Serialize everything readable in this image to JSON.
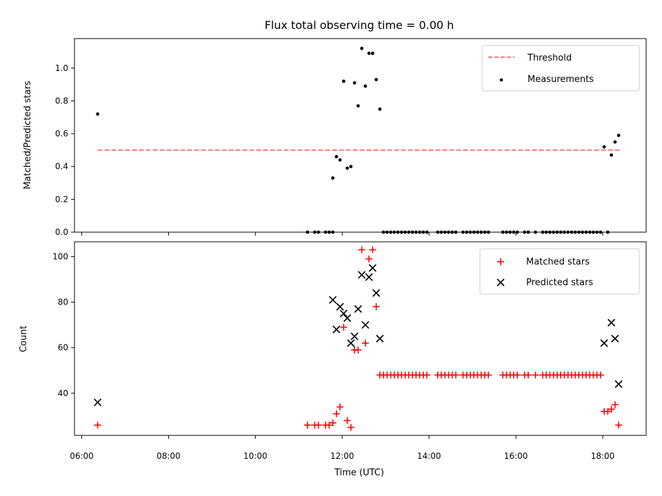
{
  "title": "Flux total observing time = 0.00 h",
  "colors": {
    "threshold": "#ff7777",
    "measurement": "#000000",
    "matched": "#ff0000",
    "predicted": "#000000"
  },
  "chart_data": [
    {
      "type": "scatter",
      "ylabel": "Matched/Predicted stars",
      "xlim": [
        "05:50",
        "19:00"
      ],
      "ylim": [
        0,
        1.18
      ],
      "x_ticks": [
        "06:00",
        "08:00",
        "10:00",
        "12:00",
        "14:00",
        "16:00",
        "18:00"
      ],
      "y_ticks": [
        "0.0",
        "0.2",
        "0.4",
        "0.6",
        "0.8",
        "1.0"
      ],
      "legend_position": "top-right",
      "series": [
        {
          "name": "Threshold",
          "style": "dashed-line",
          "x": [
            "06:22",
            "18:25"
          ],
          "y": [
            0.5,
            0.5
          ]
        },
        {
          "name": "Measurements",
          "style": "dot",
          "points": [
            [
              "06:22",
              0.72
            ],
            [
              "11:47",
              0.33
            ],
            [
              "11:52",
              0.46
            ],
            [
              "11:57",
              0.44
            ],
            [
              "12:02",
              0.92
            ],
            [
              "12:07",
              0.39
            ],
            [
              "12:12",
              0.4
            ],
            [
              "12:17",
              0.91
            ],
            [
              "12:22",
              0.77
            ],
            [
              "12:27",
              1.12
            ],
            [
              "12:32",
              0.89
            ],
            [
              "12:37",
              1.09
            ],
            [
              "12:42",
              1.09
            ],
            [
              "12:47",
              0.93
            ],
            [
              "12:52",
              0.75
            ],
            [
              "18:02",
              0.52
            ],
            [
              "18:12",
              0.47
            ],
            [
              "18:17",
              0.55
            ],
            [
              "18:22",
              0.59
            ],
            [
              "11:12",
              0
            ],
            [
              "11:22",
              0
            ],
            [
              "11:27",
              0
            ],
            [
              "11:37",
              0
            ],
            [
              "11:42",
              0
            ],
            [
              "11:47",
              0
            ],
            [
              "18:07",
              0
            ],
            [
              "12:57",
              0
            ],
            [
              "13:02",
              0
            ],
            [
              "13:07",
              0
            ],
            [
              "13:12",
              0
            ],
            [
              "13:17",
              0
            ],
            [
              "13:22",
              0
            ],
            [
              "13:27",
              0
            ],
            [
              "13:32",
              0
            ],
            [
              "13:37",
              0
            ],
            [
              "13:42",
              0
            ],
            [
              "13:47",
              0
            ],
            [
              "13:52",
              0
            ],
            [
              "13:57",
              0
            ],
            [
              "14:12",
              0
            ],
            [
              "14:17",
              0
            ],
            [
              "14:22",
              0
            ],
            [
              "14:27",
              0
            ],
            [
              "14:32",
              0
            ],
            [
              "14:37",
              0
            ],
            [
              "14:47",
              0
            ],
            [
              "14:52",
              0
            ],
            [
              "14:57",
              0
            ],
            [
              "15:02",
              0
            ],
            [
              "15:07",
              0
            ],
            [
              "15:12",
              0
            ],
            [
              "15:17",
              0
            ],
            [
              "15:22",
              0
            ],
            [
              "15:42",
              0
            ],
            [
              "15:47",
              0
            ],
            [
              "15:52",
              0
            ],
            [
              "15:57",
              0
            ],
            [
              "16:02",
              0
            ],
            [
              "16:12",
              0
            ],
            [
              "16:17",
              0
            ],
            [
              "16:27",
              0
            ],
            [
              "16:37",
              0
            ],
            [
              "16:42",
              0
            ],
            [
              "16:47",
              0
            ],
            [
              "16:52",
              0
            ],
            [
              "16:57",
              0
            ],
            [
              "17:02",
              0
            ],
            [
              "17:07",
              0
            ],
            [
              "17:12",
              0
            ],
            [
              "17:17",
              0
            ],
            [
              "17:22",
              0
            ],
            [
              "17:27",
              0
            ],
            [
              "17:32",
              0
            ],
            [
              "17:37",
              0
            ],
            [
              "17:42",
              0
            ],
            [
              "17:47",
              0
            ],
            [
              "17:52",
              0
            ],
            [
              "17:57",
              0
            ]
          ]
        }
      ]
    },
    {
      "type": "scatter",
      "xlabel": "Time (UTC)",
      "ylabel": "Count",
      "xlim": [
        "05:50",
        "19:00"
      ],
      "ylim": [
        21.5,
        106.5
      ],
      "x_ticks": [
        "06:00",
        "08:00",
        "10:00",
        "12:00",
        "14:00",
        "16:00",
        "18:00"
      ],
      "y_ticks": [
        "40",
        "60",
        "80",
        "100"
      ],
      "legend_position": "top-right",
      "series": [
        {
          "name": "Matched stars",
          "marker": "plus",
          "points": [
            [
              "06:22",
              26
            ],
            [
              "11:12",
              26
            ],
            [
              "11:22",
              26
            ],
            [
              "11:27",
              26
            ],
            [
              "11:37",
              26
            ],
            [
              "11:42",
              26
            ],
            [
              "11:47",
              27
            ],
            [
              "11:52",
              31
            ],
            [
              "11:57",
              34
            ],
            [
              "12:02",
              69
            ],
            [
              "12:07",
              28
            ],
            [
              "12:12",
              25
            ],
            [
              "12:17",
              59
            ],
            [
              "12:22",
              59
            ],
            [
              "12:27",
              103
            ],
            [
              "12:32",
              62
            ],
            [
              "12:37",
              99
            ],
            [
              "12:42",
              103
            ],
            [
              "12:47",
              78
            ],
            [
              "12:52",
              48
            ],
            [
              "12:57",
              48
            ],
            [
              "13:02",
              48
            ],
            [
              "13:07",
              48
            ],
            [
              "13:12",
              48
            ],
            [
              "13:17",
              48
            ],
            [
              "13:22",
              48
            ],
            [
              "13:27",
              48
            ],
            [
              "13:32",
              48
            ],
            [
              "13:37",
              48
            ],
            [
              "13:42",
              48
            ],
            [
              "13:47",
              48
            ],
            [
              "13:52",
              48
            ],
            [
              "13:57",
              48
            ],
            [
              "14:12",
              48
            ],
            [
              "14:17",
              48
            ],
            [
              "14:22",
              48
            ],
            [
              "14:27",
              48
            ],
            [
              "14:32",
              48
            ],
            [
              "14:37",
              48
            ],
            [
              "14:47",
              48
            ],
            [
              "14:52",
              48
            ],
            [
              "14:57",
              48
            ],
            [
              "15:02",
              48
            ],
            [
              "15:07",
              48
            ],
            [
              "15:12",
              48
            ],
            [
              "15:17",
              48
            ],
            [
              "15:22",
              48
            ],
            [
              "15:42",
              48
            ],
            [
              "15:47",
              48
            ],
            [
              "15:52",
              48
            ],
            [
              "15:57",
              48
            ],
            [
              "16:02",
              48
            ],
            [
              "16:12",
              48
            ],
            [
              "16:17",
              48
            ],
            [
              "16:27",
              48
            ],
            [
              "16:37",
              48
            ],
            [
              "16:42",
              48
            ],
            [
              "16:47",
              48
            ],
            [
              "16:52",
              48
            ],
            [
              "16:57",
              48
            ],
            [
              "17:02",
              48
            ],
            [
              "17:07",
              48
            ],
            [
              "17:12",
              48
            ],
            [
              "17:17",
              48
            ],
            [
              "17:22",
              48
            ],
            [
              "17:27",
              48
            ],
            [
              "17:32",
              48
            ],
            [
              "17:37",
              48
            ],
            [
              "17:42",
              48
            ],
            [
              "17:47",
              48
            ],
            [
              "17:52",
              48
            ],
            [
              "17:57",
              48
            ],
            [
              "18:02",
              32
            ],
            [
              "18:07",
              32
            ],
            [
              "18:12",
              33
            ],
            [
              "18:17",
              35
            ],
            [
              "18:22",
              26
            ]
          ]
        },
        {
          "name": "Predicted stars",
          "marker": "x",
          "points": [
            [
              "06:22",
              36
            ],
            [
              "11:47",
              81
            ],
            [
              "11:52",
              68
            ],
            [
              "11:57",
              78
            ],
            [
              "12:02",
              75
            ],
            [
              "12:07",
              73
            ],
            [
              "12:12",
              62
            ],
            [
              "12:17",
              65
            ],
            [
              "12:22",
              77
            ],
            [
              "12:27",
              92
            ],
            [
              "12:32",
              70
            ],
            [
              "12:37",
              91
            ],
            [
              "12:42",
              95
            ],
            [
              "12:47",
              84
            ],
            [
              "12:52",
              64
            ],
            [
              "18:02",
              62
            ],
            [
              "18:12",
              71
            ],
            [
              "18:17",
              64
            ],
            [
              "18:22",
              44
            ]
          ]
        }
      ]
    }
  ]
}
